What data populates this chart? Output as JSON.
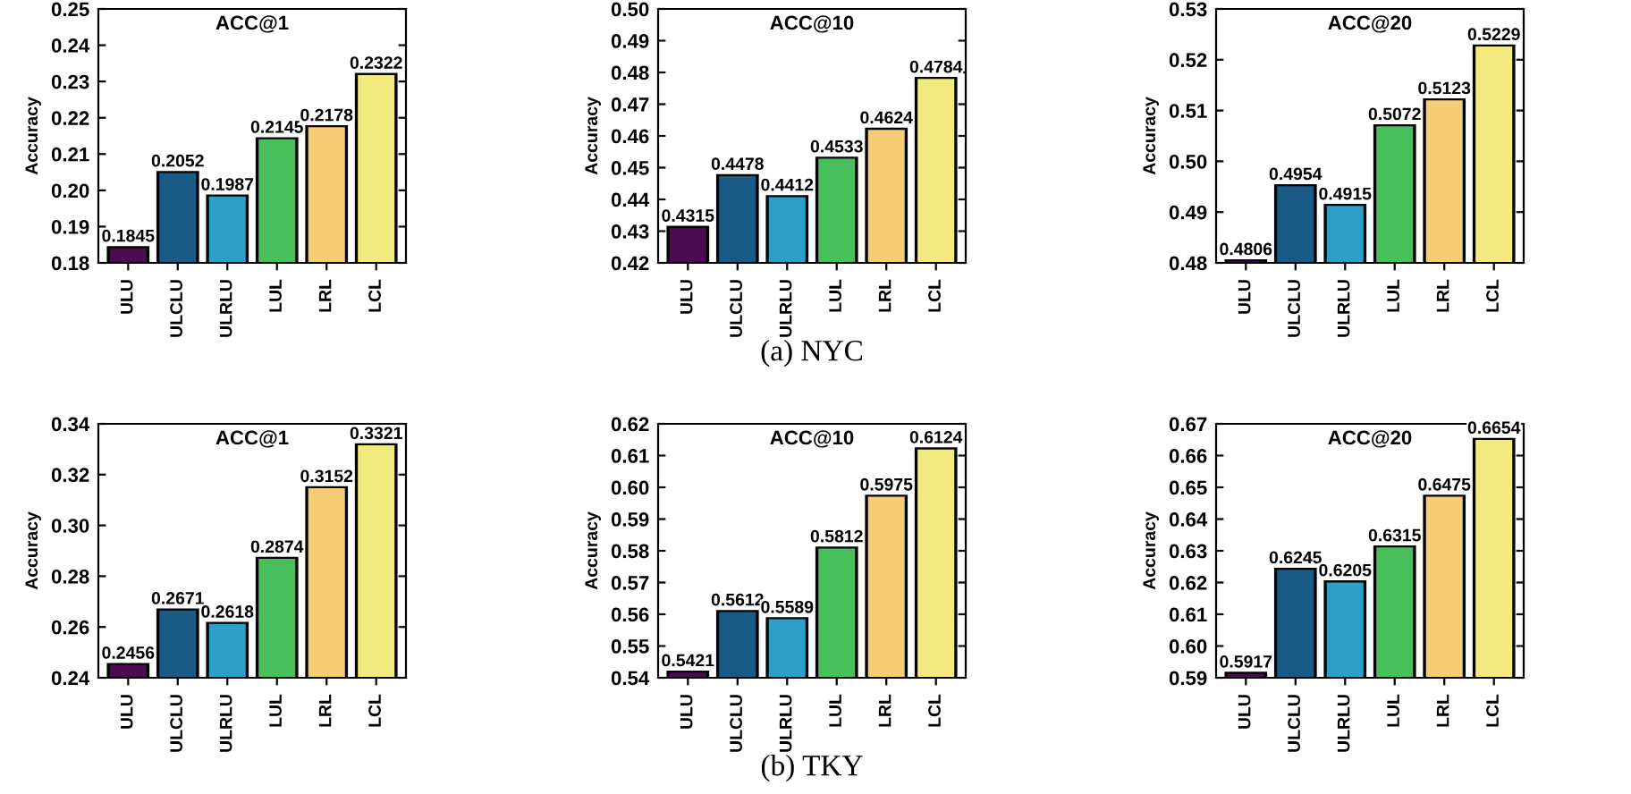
{
  "chart_data": [
    {
      "type": "bar",
      "title": "ACC@1",
      "ylabel": "Accuracy",
      "categories": [
        "ULU",
        "ULCLU",
        "ULRLU",
        "LUL",
        "LRL",
        "LCL"
      ],
      "values": [
        0.1845,
        0.2052,
        0.1987,
        0.2145,
        0.2178,
        0.2322
      ],
      "colors": [
        "#4a0c4e",
        "#1a5b85",
        "#2ea0c8",
        "#48bf5a",
        "#f4cd74",
        "#f1ea7e"
      ],
      "ylim": [
        0.18,
        0.25
      ],
      "yticks": [
        {
          "value": 0.18,
          "label": "0.18"
        },
        {
          "value": 0.19,
          "label": "0.19"
        },
        {
          "value": 0.2,
          "label": "0.20"
        },
        {
          "value": 0.21,
          "label": "0.21"
        },
        {
          "value": 0.22,
          "label": "0.22"
        },
        {
          "value": 0.23,
          "label": "0.23"
        },
        {
          "value": 0.24,
          "label": "0.24"
        },
        {
          "value": 0.25,
          "label": "0.25"
        }
      ],
      "data_labels": true
    },
    {
      "type": "bar",
      "title": "ACC@10",
      "ylabel": "Accuracy",
      "categories": [
        "ULU",
        "ULCLU",
        "ULRLU",
        "LUL",
        "LRL",
        "LCL"
      ],
      "values": [
        0.4315,
        0.4478,
        0.4412,
        0.4533,
        0.4624,
        0.4784
      ],
      "colors": [
        "#4a0c4e",
        "#1a5b85",
        "#2ea0c8",
        "#48bf5a",
        "#f4cd74",
        "#f1ea7e"
      ],
      "ylim": [
        0.42,
        0.5
      ],
      "yticks": [
        {
          "value": 0.42,
          "label": "0.42"
        },
        {
          "value": 0.43,
          "label": "0.43"
        },
        {
          "value": 0.44,
          "label": "0.44"
        },
        {
          "value": 0.45,
          "label": "0.45"
        },
        {
          "value": 0.46,
          "label": "0.46"
        },
        {
          "value": 0.47,
          "label": "0.47"
        },
        {
          "value": 0.48,
          "label": "0.48"
        },
        {
          "value": 0.49,
          "label": "0.49"
        },
        {
          "value": 0.5,
          "label": "0.50"
        }
      ],
      "data_labels": true,
      "annotations": [
        "(a) NYC"
      ]
    },
    {
      "type": "bar",
      "title": "ACC@20",
      "ylabel": "Accuracy",
      "categories": [
        "ULU",
        "ULCLU",
        "ULRLU",
        "LUL",
        "LRL",
        "LCL"
      ],
      "values": [
        0.4806,
        0.4954,
        0.4915,
        0.5072,
        0.5123,
        0.5229
      ],
      "colors": [
        "#4a0c4e",
        "#1a5b85",
        "#2ea0c8",
        "#48bf5a",
        "#f4cd74",
        "#f1ea7e"
      ],
      "ylim": [
        0.48,
        0.53
      ],
      "yticks": [
        {
          "value": 0.48,
          "label": "0.48"
        },
        {
          "value": 0.49,
          "label": "0.49"
        },
        {
          "value": 0.5,
          "label": "0.50"
        },
        {
          "value": 0.51,
          "label": "0.51"
        },
        {
          "value": 0.52,
          "label": "0.52"
        },
        {
          "value": 0.53,
          "label": "0.53"
        }
      ],
      "data_labels": true
    },
    {
      "type": "bar",
      "title": "ACC@1",
      "ylabel": "Accuracy",
      "categories": [
        "ULU",
        "ULCLU",
        "ULRLU",
        "LUL",
        "LRL",
        "LCL"
      ],
      "values": [
        0.2456,
        0.2671,
        0.2618,
        0.2874,
        0.3152,
        0.3321
      ],
      "colors": [
        "#4a0c4e",
        "#1a5b85",
        "#2ea0c8",
        "#48bf5a",
        "#f4cd74",
        "#f1ea7e"
      ],
      "ylim": [
        0.24,
        0.34
      ],
      "yticks": [
        {
          "value": 0.24,
          "label": "0.24"
        },
        {
          "value": 0.26,
          "label": "0.26"
        },
        {
          "value": 0.28,
          "label": "0.28"
        },
        {
          "value": 0.3,
          "label": "0.30"
        },
        {
          "value": 0.32,
          "label": "0.32"
        },
        {
          "value": 0.34,
          "label": "0.34"
        }
      ],
      "data_labels": true
    },
    {
      "type": "bar",
      "title": "ACC@10",
      "ylabel": "Accuracy",
      "categories": [
        "ULU",
        "ULCLU",
        "ULRLU",
        "LUL",
        "LRL",
        "LCL"
      ],
      "values": [
        0.5421,
        0.5612,
        0.5589,
        0.5812,
        0.5975,
        0.6124
      ],
      "colors": [
        "#4a0c4e",
        "#1a5b85",
        "#2ea0c8",
        "#48bf5a",
        "#f4cd74",
        "#f1ea7e"
      ],
      "ylim": [
        0.54,
        0.62
      ],
      "yticks": [
        {
          "value": 0.54,
          "label": "0.54"
        },
        {
          "value": 0.55,
          "label": "0.55"
        },
        {
          "value": 0.56,
          "label": "0.56"
        },
        {
          "value": 0.57,
          "label": "0.57"
        },
        {
          "value": 0.58,
          "label": "0.58"
        },
        {
          "value": 0.59,
          "label": "0.59"
        },
        {
          "value": 0.6,
          "label": "0.60"
        },
        {
          "value": 0.61,
          "label": "0.61"
        },
        {
          "value": 0.62,
          "label": "0.62"
        }
      ],
      "data_labels": true,
      "annotations": [
        "(b) TKY"
      ]
    },
    {
      "type": "bar",
      "title": "ACC@20",
      "ylabel": "Accuracy",
      "categories": [
        "ULU",
        "ULCLU",
        "ULRLU",
        "LUL",
        "LRL",
        "LCL"
      ],
      "values": [
        0.5917,
        0.6245,
        0.6205,
        0.6315,
        0.6475,
        0.6654
      ],
      "colors": [
        "#4a0c4e",
        "#1a5b85",
        "#2ea0c8",
        "#48bf5a",
        "#f4cd74",
        "#f1ea7e"
      ],
      "ylim": [
        0.59,
        0.67
      ],
      "yticks": [
        {
          "value": 0.59,
          "label": "0.59"
        },
        {
          "value": 0.6,
          "label": "0.60"
        },
        {
          "value": 0.61,
          "label": "0.61"
        },
        {
          "value": 0.62,
          "label": "0.62"
        },
        {
          "value": 0.63,
          "label": "0.63"
        },
        {
          "value": 0.64,
          "label": "0.64"
        },
        {
          "value": 0.65,
          "label": "0.65"
        },
        {
          "value": 0.66,
          "label": "0.66"
        },
        {
          "value": 0.67,
          "label": "0.67"
        }
      ],
      "data_labels": true
    }
  ]
}
